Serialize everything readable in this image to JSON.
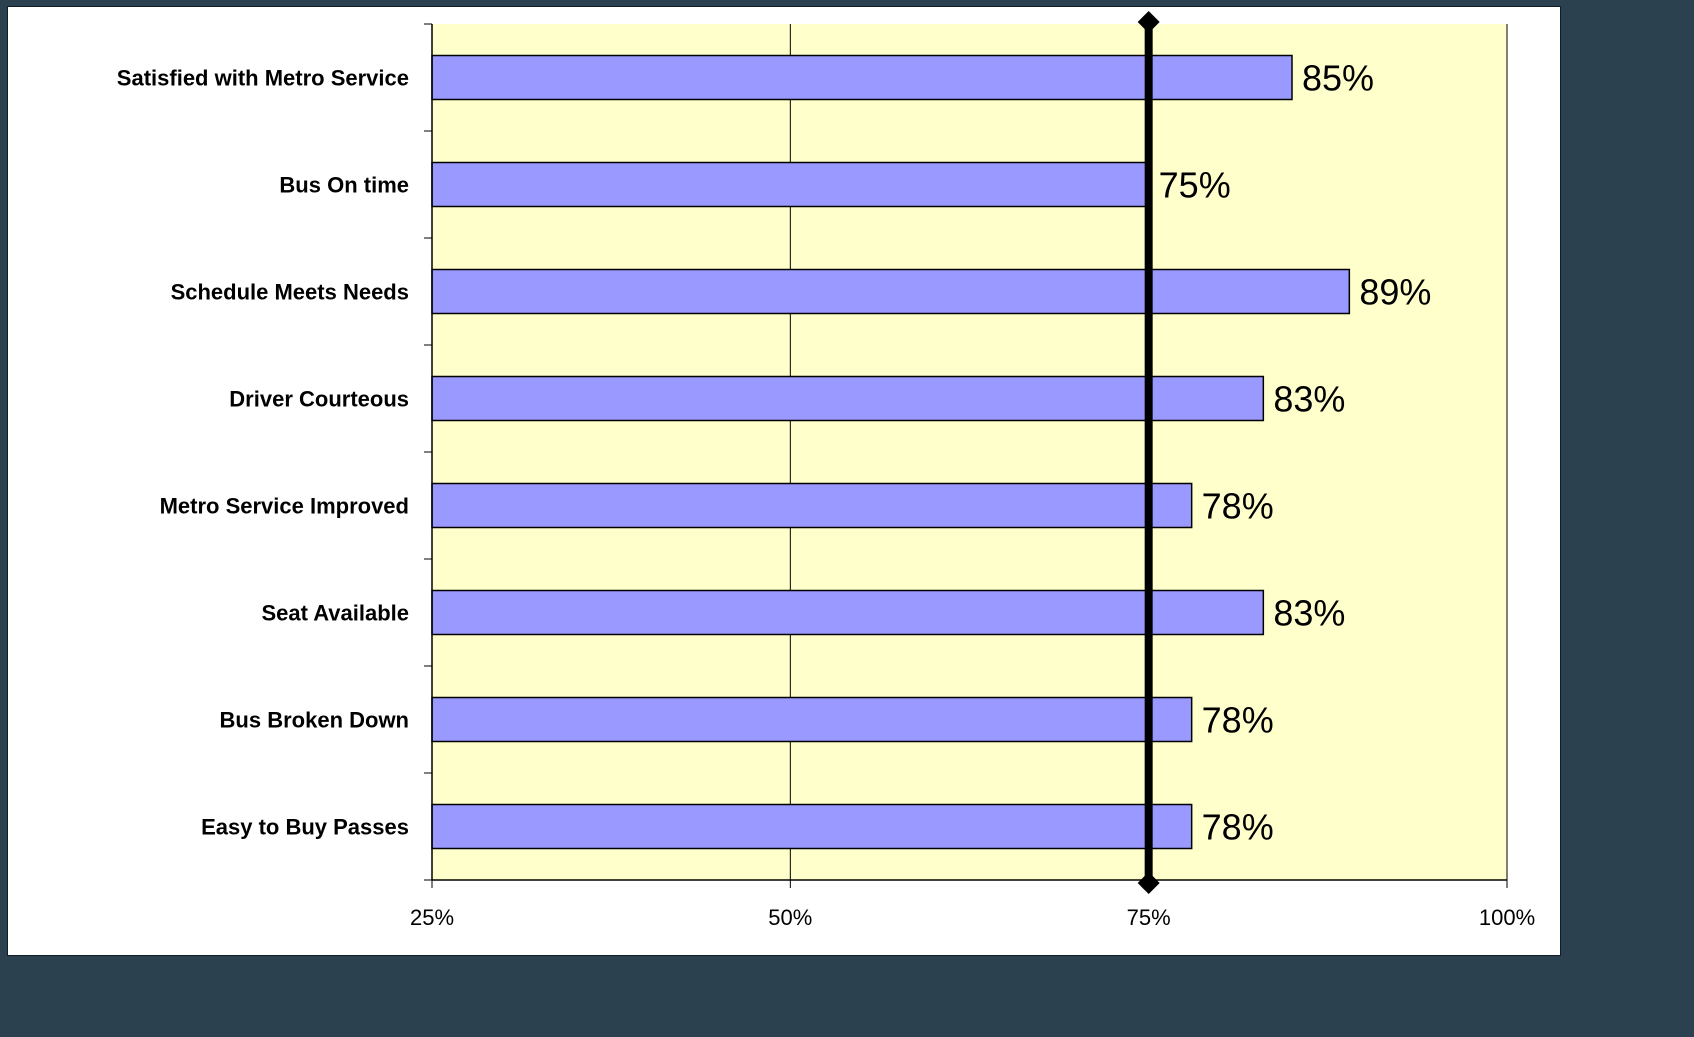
{
  "chart_data": {
    "type": "bar",
    "orientation": "horizontal",
    "title": "",
    "xlabel": "",
    "ylabel": "",
    "categories": [
      "Satisfied with Metro Service",
      "Bus On time",
      "Schedule Meets Needs",
      "Driver Courteous",
      "Metro Service Improved",
      "Seat Available",
      "Bus Broken Down",
      "Easy to Buy Passes"
    ],
    "values": [
      85,
      75,
      89,
      83,
      78,
      83,
      78,
      78
    ],
    "value_labels": [
      "85%",
      "75%",
      "89%",
      "83%",
      "78%",
      "83%",
      "78%",
      "78%"
    ],
    "xlim": [
      25,
      100
    ],
    "xticks": [
      25,
      50,
      75,
      100
    ],
    "xtick_labels": [
      "25%",
      "50%",
      "75%",
      "100%"
    ],
    "reference_line": 75,
    "grid": true,
    "colors": {
      "bar": "#9999ff",
      "plot_background": "#ffffcc",
      "reference_line": "#000000",
      "frame_background": "#2b4150"
    }
  }
}
